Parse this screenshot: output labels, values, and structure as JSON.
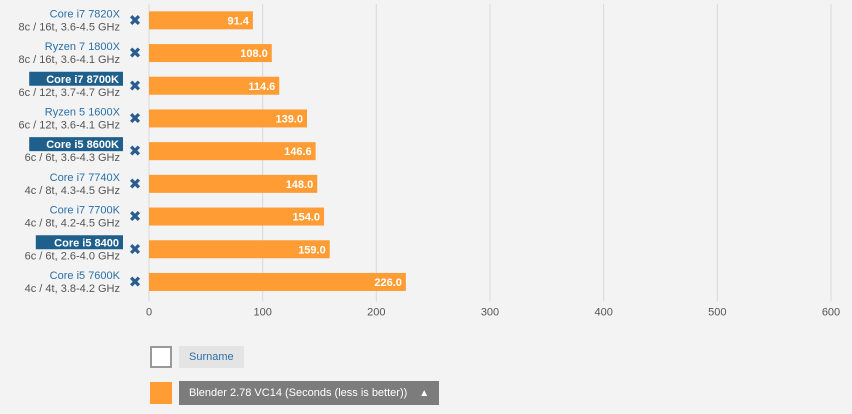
{
  "chart_data": {
    "type": "bar",
    "orientation": "horizontal",
    "categories": [
      {
        "name": "Core i7 7820X",
        "sub": "8c / 16t, 3.6-4.5 GHz",
        "highlight": false
      },
      {
        "name": "Ryzen 7 1800X",
        "sub": "8c / 16t, 3.6-4.1 GHz",
        "highlight": false
      },
      {
        "name": "Core i7 8700K",
        "sub": "6c / 12t, 3.7-4.7 GHz",
        "highlight": true
      },
      {
        "name": "Ryzen 5 1600X",
        "sub": "6c / 12t, 3.6-4.1 GHz",
        "highlight": false
      },
      {
        "name": "Core i5 8600K",
        "sub": "6c / 6t, 3.6-4.3 GHz",
        "highlight": true
      },
      {
        "name": "Core i7 7740X",
        "sub": "4c / 8t, 4.3-4.5 GHz",
        "highlight": false
      },
      {
        "name": "Core i7 7700K",
        "sub": "4c / 8t, 4.2-4.5 GHz",
        "highlight": false
      },
      {
        "name": "Core i5 8400",
        "sub": "6c / 6t, 2.6-4.0 GHz",
        "highlight": true
      },
      {
        "name": "Core i5 7600K",
        "sub": "4c / 4t, 3.8-4.2 GHz",
        "highlight": false
      }
    ],
    "values": [
      91.4,
      108.0,
      114.6,
      139.0,
      146.6,
      148.0,
      154.0,
      159.0,
      226.0
    ],
    "value_labels": [
      "91.4",
      "108.0",
      "114.6",
      "139.0",
      "146.6",
      "148.0",
      "154.0",
      "159.0",
      "226.0"
    ],
    "xlim": [
      0,
      600
    ],
    "xticks": [
      0,
      100,
      200,
      300,
      400,
      500,
      600
    ],
    "grid": true,
    "bar_color": "#ff9c33",
    "remove_icon": "close-icon"
  },
  "legend": {
    "surname_label": "Surname",
    "series_label": "Blender 2.78 VC14 (Seconds (less is better))",
    "caret_icon": "▲"
  }
}
